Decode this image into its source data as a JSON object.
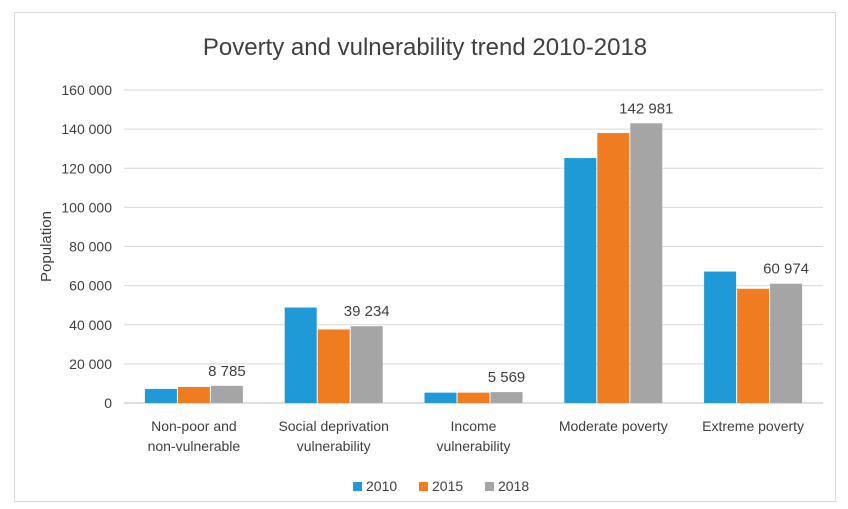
{
  "chart_data": {
    "type": "bar",
    "title": "Poverty and vulnerability trend 2010-2018",
    "ylabel": "Population",
    "xlabel": "",
    "ylim": [
      0,
      160000
    ],
    "yticks": [
      0,
      20000,
      40000,
      60000,
      80000,
      100000,
      120000,
      140000,
      160000
    ],
    "ytick_labels": [
      "0",
      "20 000",
      "40 000",
      "60 000",
      "80 000",
      "100 000",
      "120 000",
      "140 000",
      "160 000"
    ],
    "categories": [
      [
        "Non-poor and",
        "non-vulnerable"
      ],
      [
        "Social deprivation",
        "vulnerability"
      ],
      [
        "Income",
        "vulnerability"
      ],
      [
        "Moderate poverty"
      ],
      [
        "Extreme poverty"
      ]
    ],
    "series": [
      {
        "name": "2010",
        "color": "#1f9ad6",
        "values": [
          7200,
          48800,
          5300,
          125200,
          67200
        ]
      },
      {
        "name": "2015",
        "color": "#f07c22",
        "values": [
          8200,
          37600,
          5300,
          138000,
          58400
        ]
      },
      {
        "name": "2018",
        "color": "#a5a5a5",
        "values": [
          8785,
          39234,
          5569,
          142981,
          60974
        ]
      }
    ],
    "data_labels": [
      {
        "category_index": 0,
        "series_index": 2,
        "text": "8 785"
      },
      {
        "category_index": 1,
        "series_index": 2,
        "text": "39 234"
      },
      {
        "category_index": 2,
        "series_index": 2,
        "text": "5 569"
      },
      {
        "category_index": 3,
        "series_index": 2,
        "text": "142 981"
      },
      {
        "category_index": 4,
        "series_index": 2,
        "text": "60 974"
      }
    ],
    "grid": true,
    "legend_position": "bottom"
  }
}
